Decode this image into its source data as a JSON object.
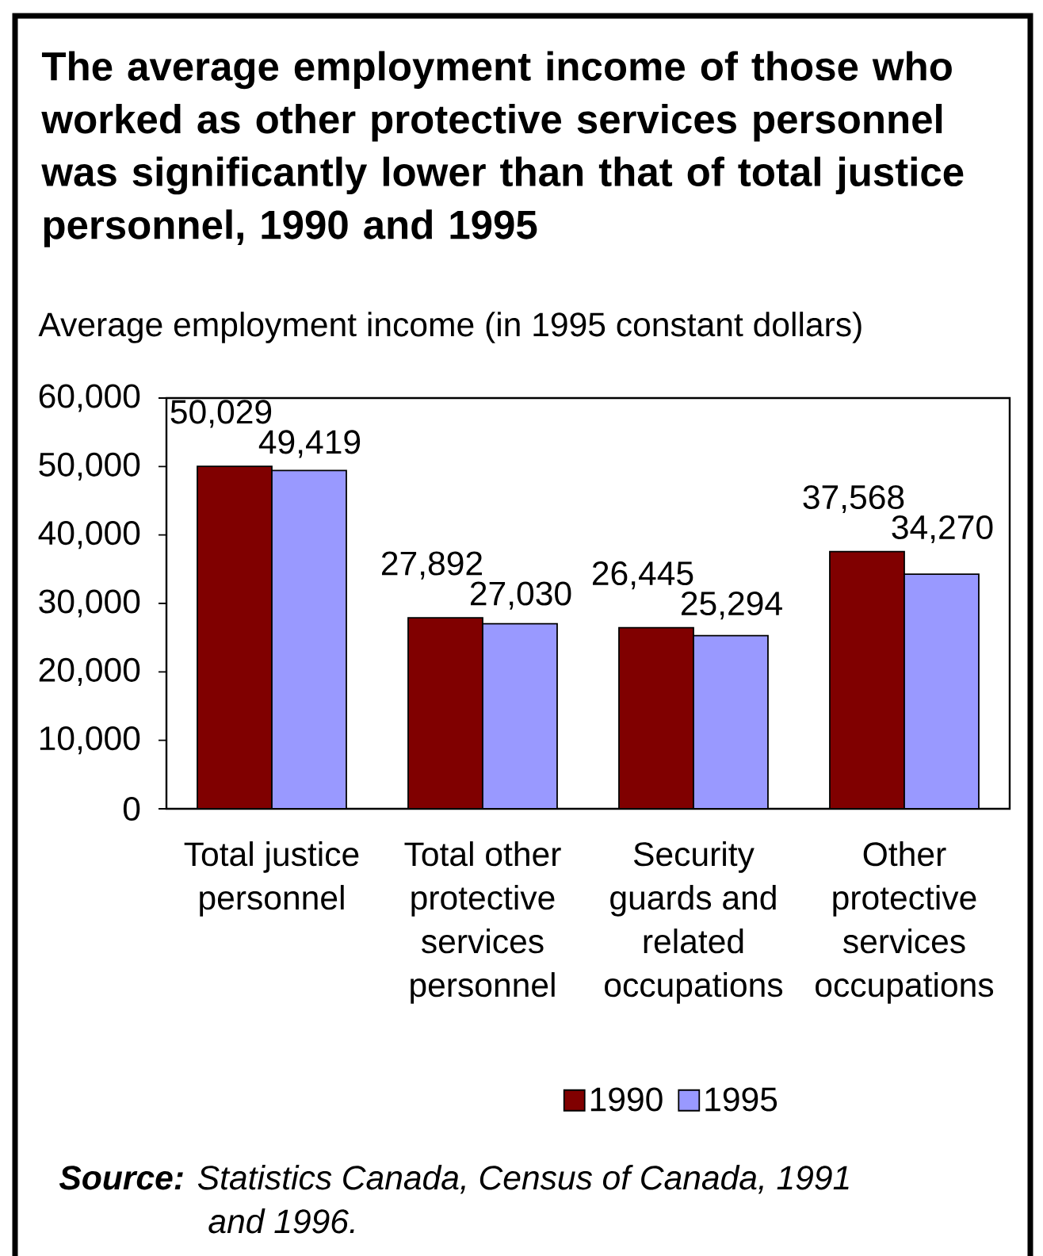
{
  "chart_data": {
    "type": "bar",
    "title": "The average employment income of those who worked as other protective services personnel was significantly lower than that of total justice personnel, 1990 and 1995",
    "ylabel": "Average employment income (in 1995 constant dollars)",
    "categories": [
      "Total justice personnel",
      "Total other protective services personnel",
      "Security guards and related occupations",
      "Other protective services occupations"
    ],
    "series": [
      {
        "name": "1990",
        "color": "#800000",
        "values": [
          50029,
          27892,
          26445,
          37568
        ],
        "value_labels": [
          "50,029",
          "27,892",
          "26,445",
          "37,568"
        ]
      },
      {
        "name": "1995",
        "color": "#9999ff",
        "values": [
          49419,
          27030,
          25294,
          34270
        ],
        "value_labels": [
          "49,419",
          "27,030",
          "25,294",
          "34,270"
        ]
      }
    ],
    "ylim": [
      0,
      60000
    ],
    "yticks": [
      0,
      {
        "value": 10000,
        "label": "10,000"
      },
      {
        "value": 20000,
        "label": "20,000"
      },
      {
        "value": 30000,
        "label": "30,000"
      },
      {
        "value": 40000,
        "label": "40,000"
      },
      {
        "value": 50000,
        "label": "50,000"
      },
      {
        "value": 60000,
        "label": "60,000"
      }
    ],
    "legend": "bottom",
    "annotations": [
      "**Source:** Statistics Canada, Census of Canada, 1991 and 1996."
    ]
  }
}
